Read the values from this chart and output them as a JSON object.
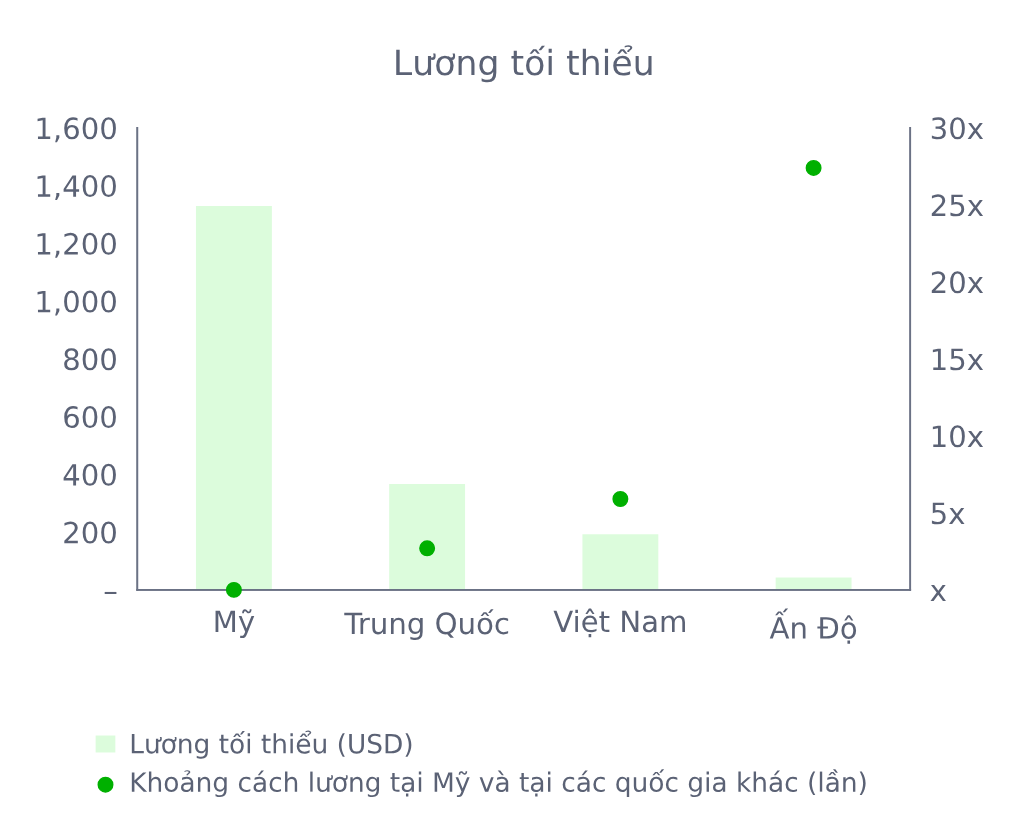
{
  "chart_data": {
    "type": "bar",
    "title": "Lương tối thiểu",
    "categories": [
      "Mỹ",
      "Trung Quốc",
      "Việt Nam",
      "Ấn Độ"
    ],
    "series": [
      {
        "name": "Lương tối thiểu (USD)",
        "color": "#dcfcdc",
        "values": [
          1332,
          369,
          195,
          45
        ]
      },
      {
        "name": "Khoảng cách lương tại Mỹ và tại các quốc gia khác (lần)",
        "type": "scatter",
        "axis": "y2",
        "color": "#00b000",
        "marker": "circle",
        "values": [
          0,
          2.7,
          5.9,
          27.4
        ]
      }
    ],
    "ylim": [
      0,
      1600
    ],
    "yticks": [
      {
        "value": 0,
        "label": "–"
      },
      {
        "value": 200,
        "label": "200"
      },
      {
        "value": 400,
        "label": "400"
      },
      {
        "value": 600,
        "label": "600"
      },
      {
        "value": 800,
        "label": "800"
      },
      {
        "value": 1000,
        "label": "1,000"
      },
      {
        "value": 1200,
        "label": "1,200"
      },
      {
        "value": 1400,
        "label": "1,400"
      },
      {
        "value": 1600,
        "label": "1,600"
      }
    ],
    "y2lim": [
      0,
      30
    ],
    "y2ticks": [
      {
        "value": 0,
        "label": "x"
      },
      {
        "value": 5,
        "label": "5x"
      },
      {
        "value": 10,
        "label": "10x"
      },
      {
        "value": 15,
        "label": "15x"
      },
      {
        "value": 20,
        "label": "20x"
      },
      {
        "value": 25,
        "label": "25x"
      },
      {
        "value": 30,
        "label": "30x"
      }
    ],
    "grid": false,
    "legend": "bottom"
  }
}
